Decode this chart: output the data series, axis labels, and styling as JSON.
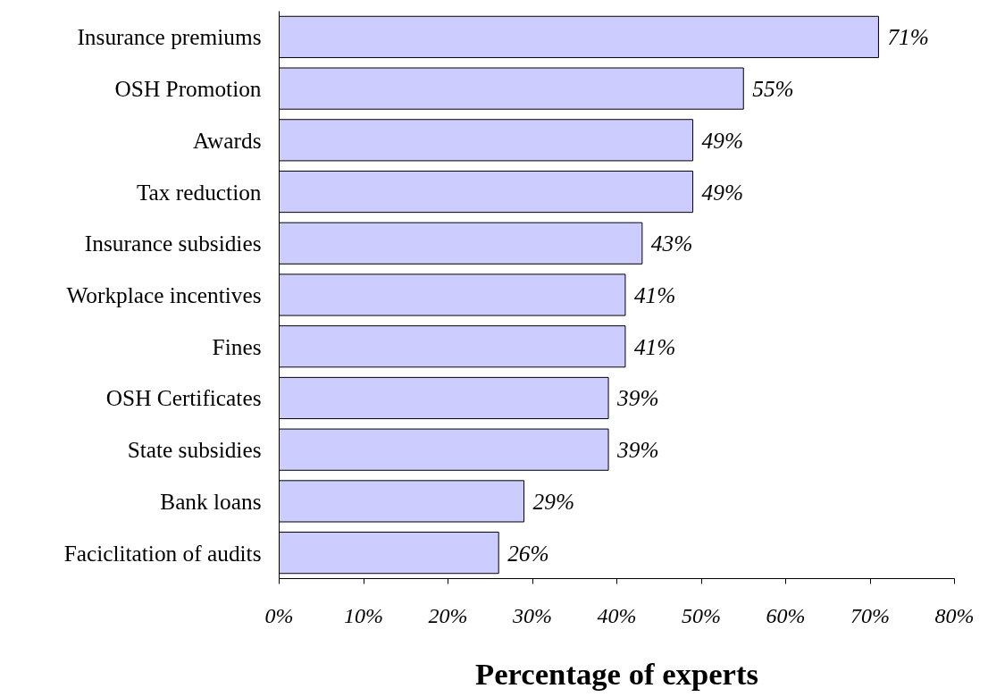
{
  "chart_data": {
    "type": "bar",
    "orientation": "horizontal",
    "xlabel": "Percentage of experts",
    "categories": [
      "Insurance premiums",
      "OSH Promotion",
      "Awards",
      "Tax reduction",
      "Insurance subsidies",
      "Workplace incentives",
      "Fines",
      "OSH Certificates",
      "State subsidies",
      "Bank loans",
      "Faciclitation of audits"
    ],
    "values": [
      71,
      55,
      49,
      49,
      43,
      41,
      41,
      39,
      39,
      29,
      26
    ],
    "value_labels": [
      "71%",
      "55%",
      "49%",
      "49%",
      "43%",
      "41%",
      "41%",
      "39%",
      "39%",
      "29%",
      "26%"
    ],
    "color": "#ccccff",
    "xlim": [
      0,
      80
    ],
    "xticks": [
      {
        "value": 0,
        "label": "0%"
      },
      {
        "value": 10,
        "label": "10%"
      },
      {
        "value": 20,
        "label": "20%"
      },
      {
        "value": 30,
        "label": "30%"
      },
      {
        "value": 40,
        "label": "40%"
      },
      {
        "value": 50,
        "label": "50%"
      },
      {
        "value": 60,
        "label": "60%"
      },
      {
        "value": 70,
        "label": "70%"
      },
      {
        "value": 80,
        "label": "80%"
      }
    ],
    "grid": false
  }
}
